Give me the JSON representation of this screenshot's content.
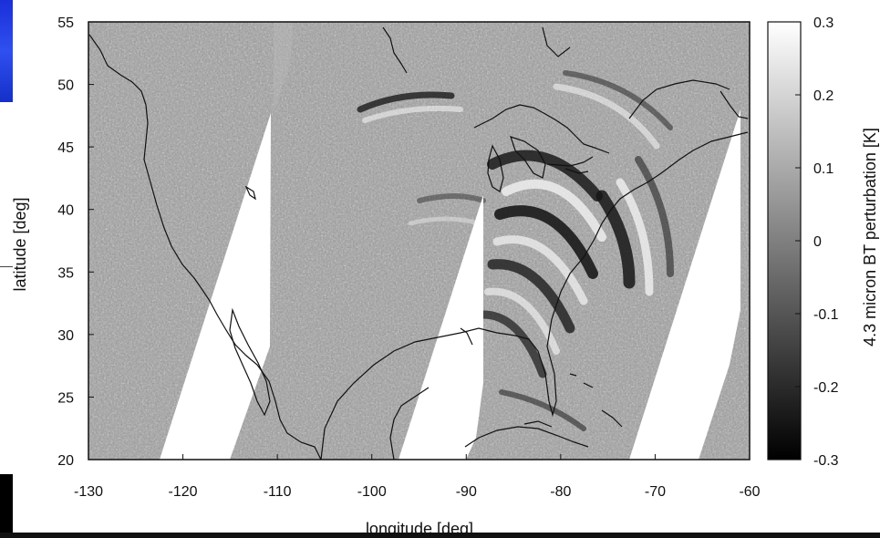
{
  "chart_data": {
    "type": "heatmap",
    "title": "",
    "xlabel": "longitude [deg]",
    "ylabel": "latitude [deg]",
    "xlim": [
      -130,
      -60
    ],
    "ylim": [
      20,
      55
    ],
    "xticks": [
      "-130",
      "-120",
      "-110",
      "-100",
      "-90",
      "-80",
      "-70",
      "-60"
    ],
    "yticks": [
      "20",
      "25",
      "30",
      "35",
      "40",
      "45",
      "50",
      "55"
    ],
    "colorbar": {
      "label": "4.3 micron BT perturbation [K]",
      "ticks": [
        "0.3",
        "0.2",
        "0.1",
        "0",
        "-0.1",
        "-0.2",
        "-0.3"
      ],
      "range": [
        -0.3,
        0.3
      ],
      "colormap": "grayscale (black = -0.3, white = 0.3)"
    },
    "description_colors": {
      "low": "#000000",
      "high": "#ffffff",
      "missing": "#ffffff"
    }
  }
}
